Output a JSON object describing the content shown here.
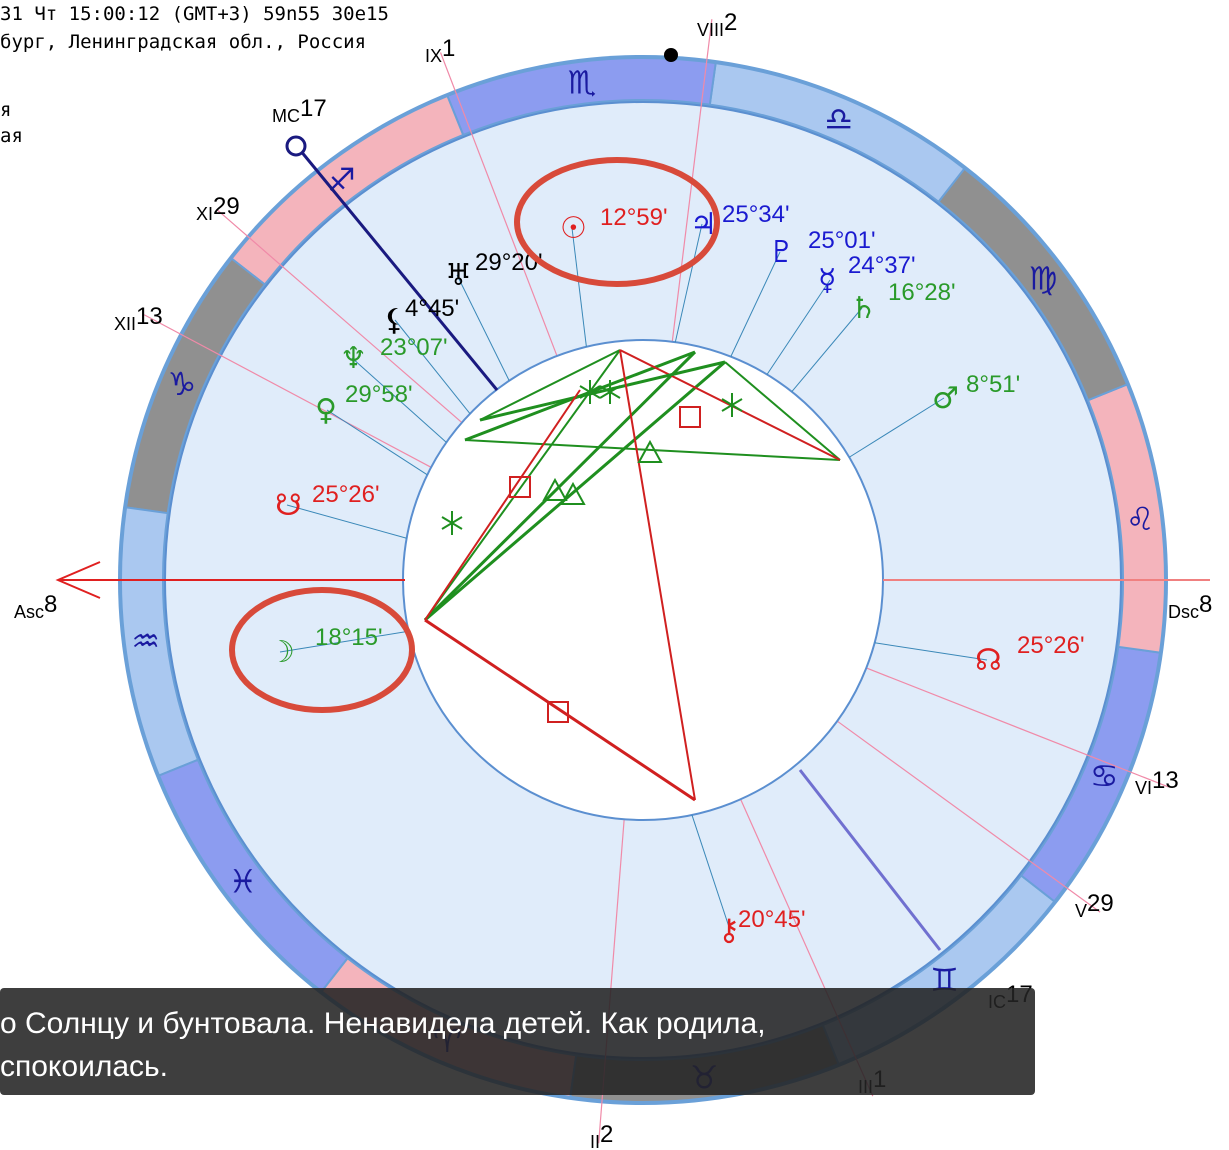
{
  "header": {
    "lines": [
      "31  Чт  15:00:12 (GMT+3) 59n55  30e15",
      "бург, Ленинградская обл., Россия",
      "я",
      "ая"
    ]
  },
  "houses": [
    {
      "name": "IX",
      "degree": "1"
    },
    {
      "name": "VIII",
      "degree": "2"
    },
    {
      "name": "MC",
      "degree": "17"
    },
    {
      "name": "XI",
      "degree": "29"
    },
    {
      "name": "XII",
      "degree": "13"
    },
    {
      "name": "Asc",
      "degree": "8"
    },
    {
      "name": "Dsc",
      "degree": "8"
    },
    {
      "name": "VI",
      "degree": "13"
    },
    {
      "name": "V",
      "degree": "29"
    },
    {
      "name": "IC",
      "degree": "17"
    },
    {
      "name": "III",
      "degree": "1"
    },
    {
      "name": "II",
      "degree": "2"
    }
  ],
  "zodiac": [
    "♈",
    "♉",
    "♊",
    "♋",
    "♌",
    "♍",
    "♎",
    "♏",
    "♐",
    "♑",
    "♒",
    "♓"
  ],
  "planets": [
    {
      "glyph": "☉",
      "degree": "12°59'",
      "color": "#e02020"
    },
    {
      "glyph": "♃",
      "degree": "25°34'",
      "color": "#1a1ad0"
    },
    {
      "glyph": "♇",
      "degree": "25°01'",
      "color": "#1a1ad0"
    },
    {
      "glyph": "☿",
      "degree": "24°37'",
      "color": "#1a1ad0"
    },
    {
      "glyph": "♄",
      "degree": "16°28'",
      "color": "#2a9a2a"
    },
    {
      "glyph": "♂",
      "degree": "8°51'",
      "color": "#2a9a2a"
    },
    {
      "glyph": "♅",
      "degree": "29°20'",
      "color": "#000000"
    },
    {
      "glyph": "⚸",
      "degree": "4°45'",
      "color": "#000000"
    },
    {
      "glyph": "♆",
      "degree": "23°07'",
      "color": "#2a9a2a"
    },
    {
      "glyph": "♀",
      "degree": "29°58'",
      "color": "#2a9a2a"
    },
    {
      "glyph": "☋",
      "degree": "25°26'",
      "color": "#e02020"
    },
    {
      "glyph": "☽",
      "degree": "18°15'",
      "color": "#2a9a2a"
    },
    {
      "glyph": "☊",
      "degree": "25°26'",
      "color": "#e02020"
    },
    {
      "glyph": "⚷",
      "degree": "20°45'",
      "color": "#e02020"
    }
  ],
  "subtitle": {
    "lines": [
      "о Солнцу и бунтовала. Ненавидела детей. Как родила,",
      "спокоилась."
    ]
  }
}
